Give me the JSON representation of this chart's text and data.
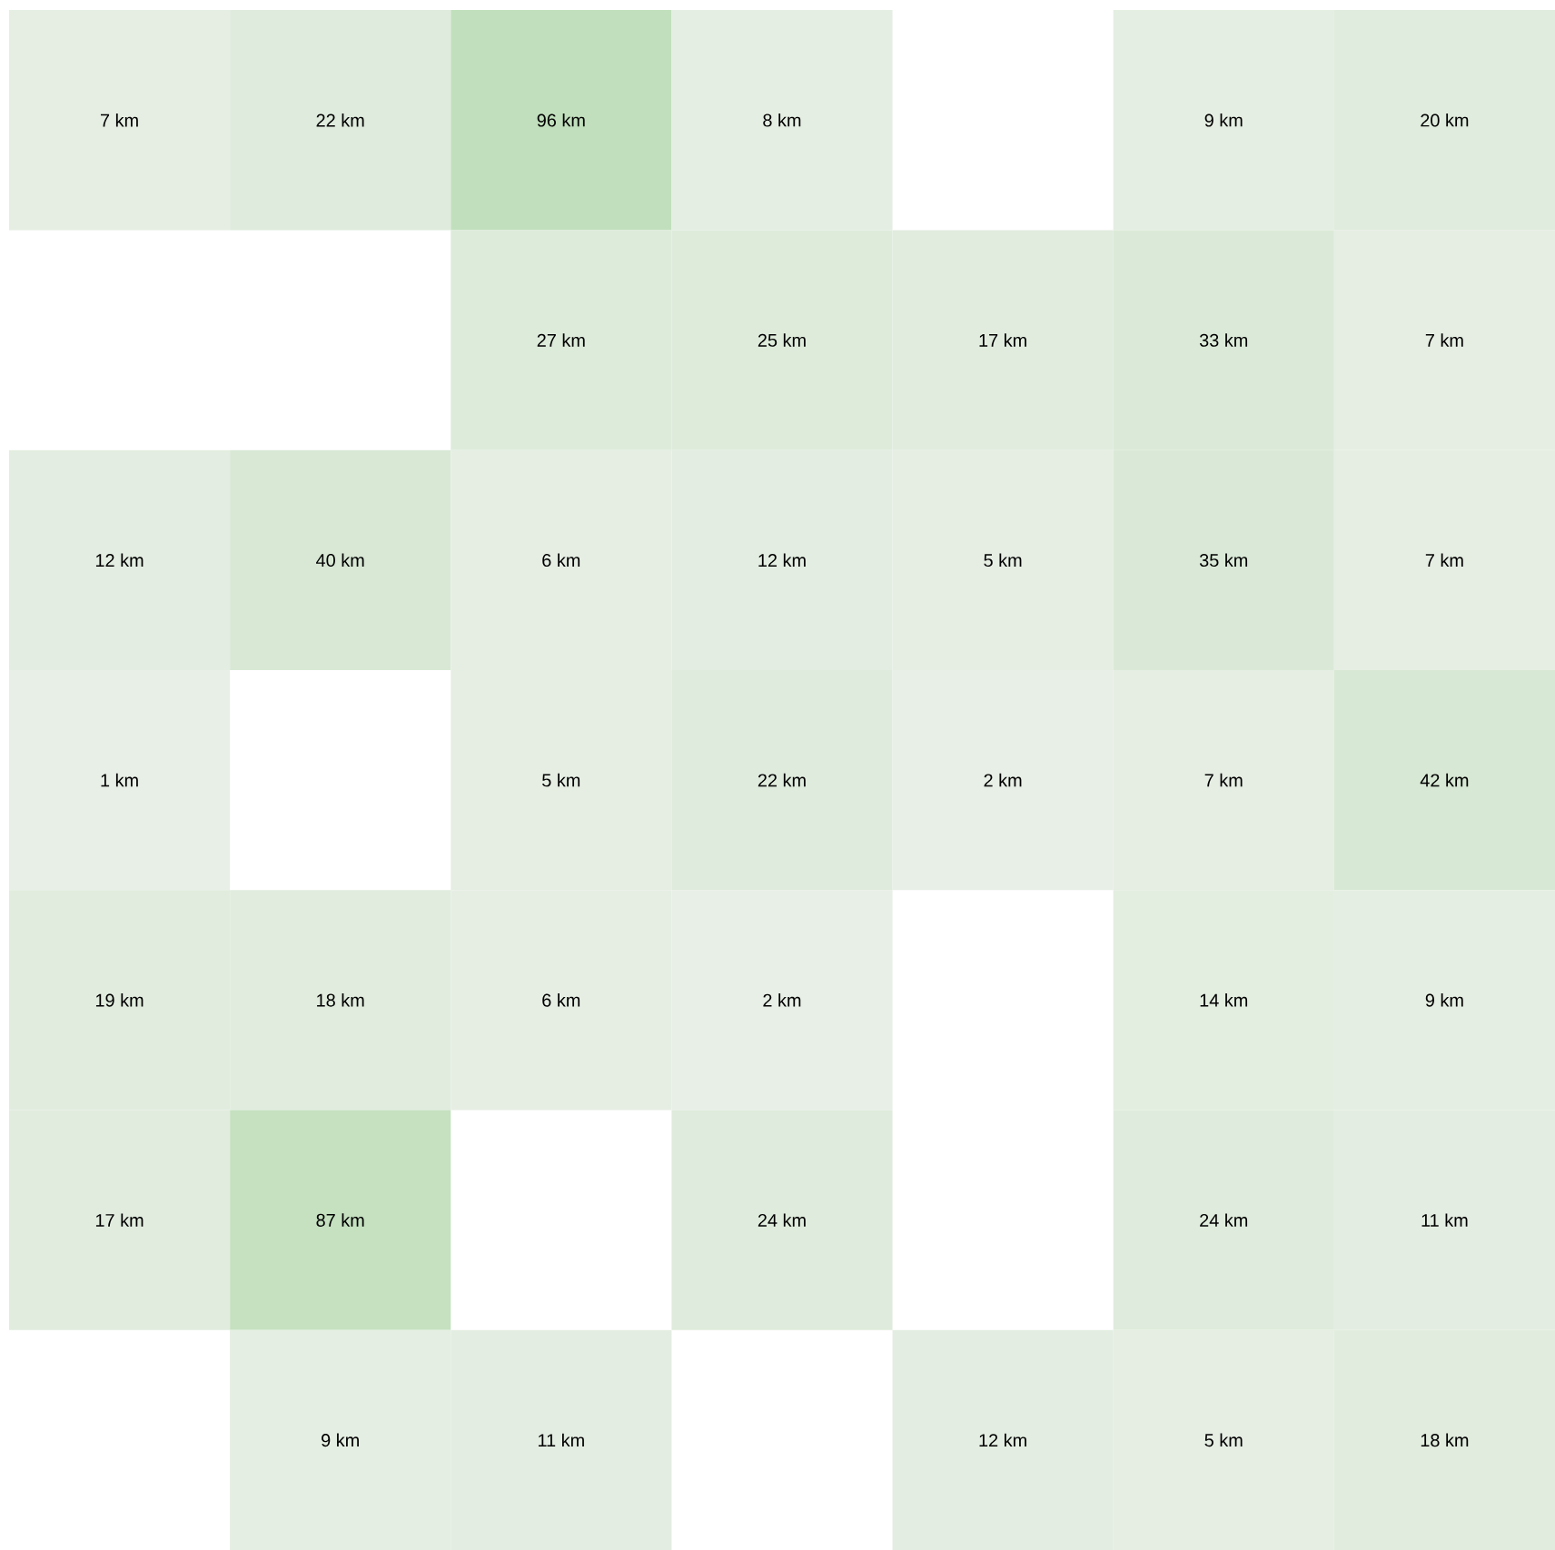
{
  "chart_data": {
    "type": "heatmap",
    "categories": [
      null,
      null,
      null,
      null,
      null,
      null,
      null
    ],
    "y_categories": [
      null,
      null,
      null,
      null,
      null,
      null,
      null
    ],
    "cells": [
      [
        7,
        22,
        96,
        8,
        null,
        9,
        20
      ],
      [
        null,
        null,
        27,
        25,
        17,
        33,
        7
      ],
      [
        12,
        40,
        6,
        12,
        5,
        35,
        7
      ],
      [
        1,
        null,
        5,
        22,
        2,
        7,
        42
      ],
      [
        19,
        18,
        6,
        2,
        null,
        14,
        9
      ],
      [
        17,
        87,
        null,
        24,
        null,
        24,
        11
      ],
      [
        null,
        9,
        11,
        null,
        12,
        5,
        18
      ]
    ],
    "cell_labels": [
      [
        "7 km",
        "22 km",
        "96 km",
        "8 km",
        null,
        "9 km",
        "20 km"
      ],
      [
        null,
        null,
        "27 km",
        "25 km",
        "17 km",
        "33 km",
        "7 km"
      ],
      [
        "12 km",
        "40 km",
        "6 km",
        "12 km",
        "5 km",
        "35 km",
        "7 km"
      ],
      [
        "1 km",
        null,
        "5 km",
        "22 km",
        "2 km",
        "7 km",
        "42 km"
      ],
      [
        "19 km",
        "18 km",
        "6 km",
        "2 km",
        null,
        "14 km",
        "9 km"
      ],
      [
        "17 km",
        "87 km",
        null,
        "24 km",
        null,
        "24 km",
        "11 km"
      ],
      [
        null,
        "9 km",
        "11 km",
        null,
        "12 km",
        "5 km",
        "18 km"
      ]
    ]
  }
}
